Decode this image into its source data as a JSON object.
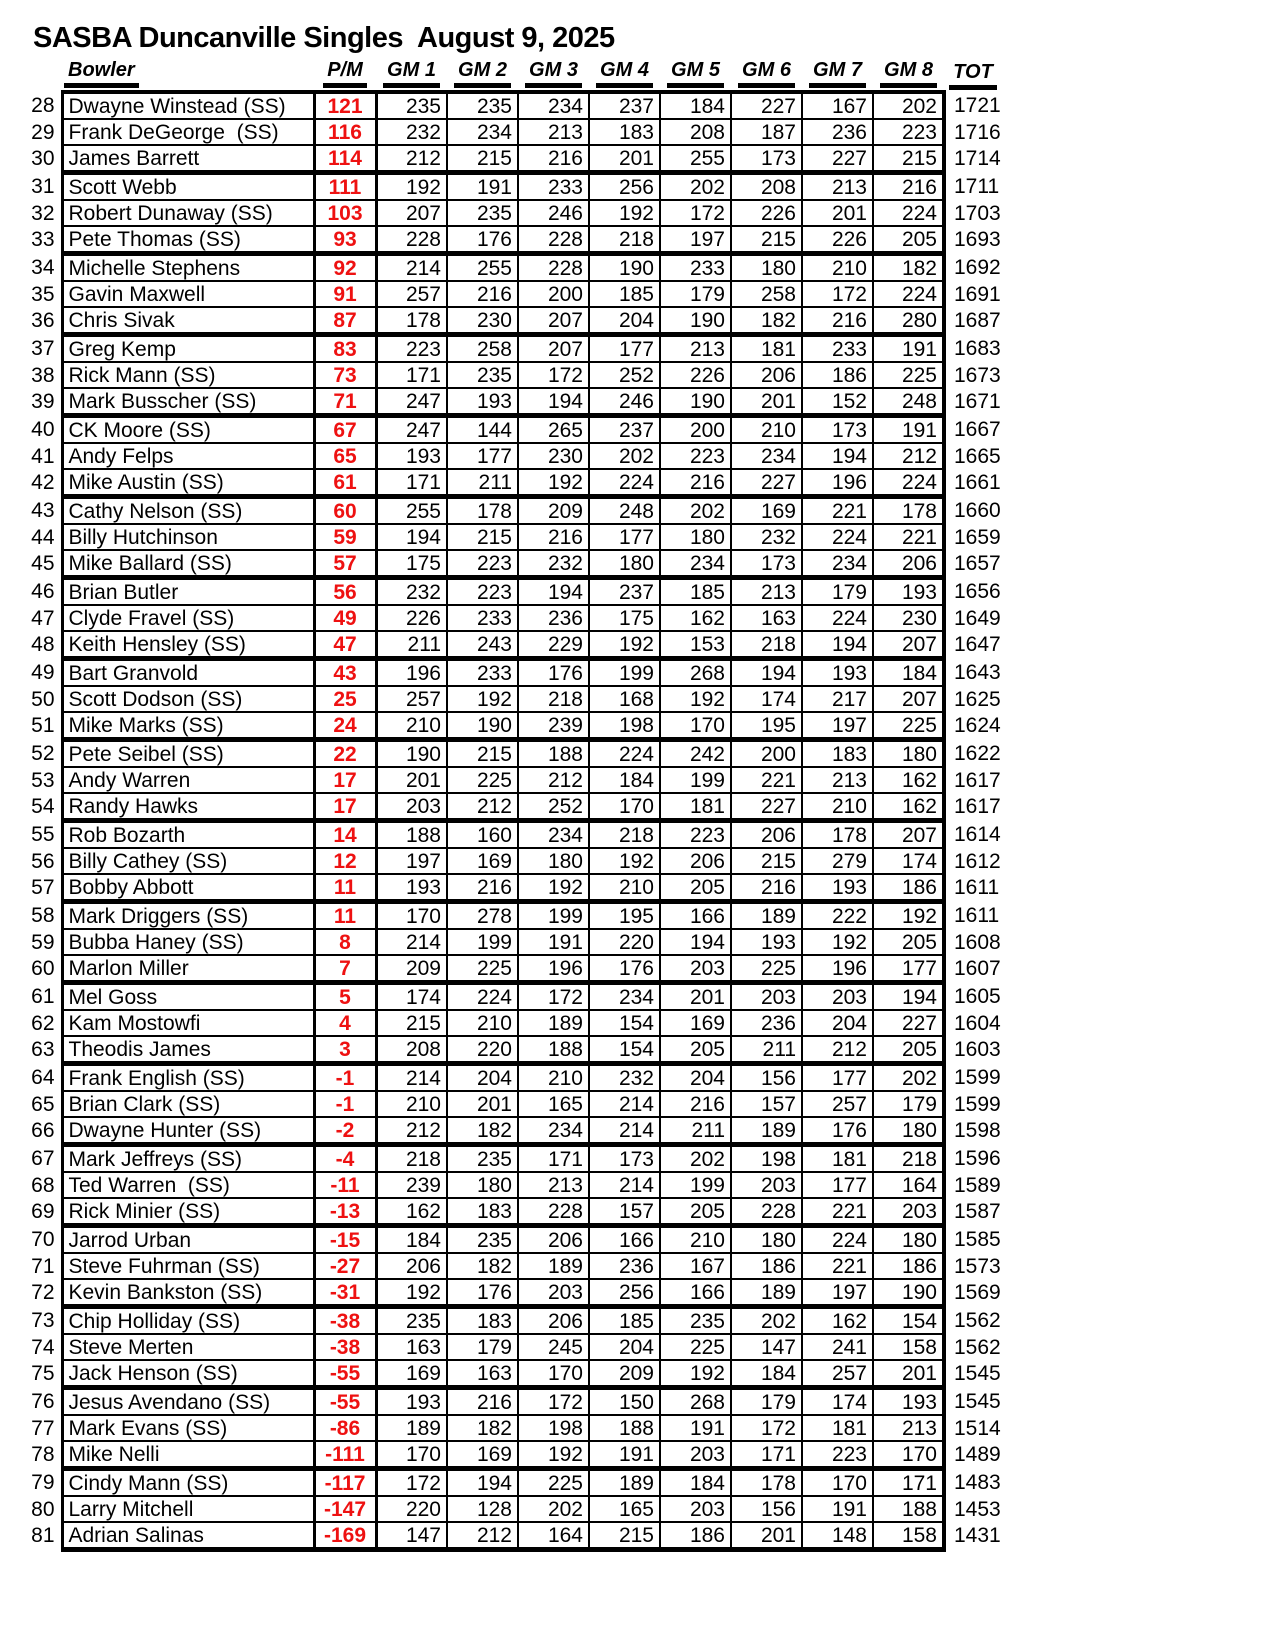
{
  "title": "SASBA Duncanville Singles  August 9, 2025",
  "colors": {
    "plus_minus": "#EE1111"
  },
  "columns": {
    "bowler": "Bowler",
    "pm": "P/M",
    "games": [
      "GM 1",
      "GM 2",
      "GM 3",
      "GM 4",
      "GM 5",
      "GM 6",
      "GM 7",
      "GM 8"
    ],
    "tot": "TOT"
  },
  "rows": [
    {
      "rank": 28,
      "name": "Dwayne Winstead (SS)",
      "pm": "121",
      "games": [
        235,
        235,
        234,
        237,
        184,
        227,
        167,
        202
      ],
      "tot": 1721
    },
    {
      "rank": 29,
      "name": "Frank DeGeorge  (SS)",
      "pm": "116",
      "games": [
        232,
        234,
        213,
        183,
        208,
        187,
        236,
        223
      ],
      "tot": 1716
    },
    {
      "rank": 30,
      "name": "James Barrett",
      "pm": "114",
      "games": [
        212,
        215,
        216,
        201,
        255,
        173,
        227,
        215
      ],
      "tot": 1714
    },
    {
      "rank": 31,
      "name": "Scott Webb",
      "pm": "111",
      "games": [
        192,
        191,
        233,
        256,
        202,
        208,
        213,
        216
      ],
      "tot": 1711
    },
    {
      "rank": 32,
      "name": "Robert Dunaway (SS)",
      "pm": "103",
      "games": [
        207,
        235,
        246,
        192,
        172,
        226,
        201,
        224
      ],
      "tot": 1703
    },
    {
      "rank": 33,
      "name": "Pete Thomas (SS)",
      "pm": "93",
      "games": [
        228,
        176,
        228,
        218,
        197,
        215,
        226,
        205
      ],
      "tot": 1693
    },
    {
      "rank": 34,
      "name": "Michelle Stephens",
      "pm": "92",
      "games": [
        214,
        255,
        228,
        190,
        233,
        180,
        210,
        182
      ],
      "tot": 1692
    },
    {
      "rank": 35,
      "name": "Gavin Maxwell",
      "pm": "91",
      "games": [
        257,
        216,
        200,
        185,
        179,
        258,
        172,
        224
      ],
      "tot": 1691
    },
    {
      "rank": 36,
      "name": "Chris Sivak",
      "pm": "87",
      "games": [
        178,
        230,
        207,
        204,
        190,
        182,
        216,
        280
      ],
      "tot": 1687
    },
    {
      "rank": 37,
      "name": "Greg Kemp",
      "pm": "83",
      "games": [
        223,
        258,
        207,
        177,
        213,
        181,
        233,
        191
      ],
      "tot": 1683
    },
    {
      "rank": 38,
      "name": "Rick Mann (SS)",
      "pm": "73",
      "games": [
        171,
        235,
        172,
        252,
        226,
        206,
        186,
        225
      ],
      "tot": 1673
    },
    {
      "rank": 39,
      "name": "Mark Busscher (SS)",
      "pm": "71",
      "games": [
        247,
        193,
        194,
        246,
        190,
        201,
        152,
        248
      ],
      "tot": 1671
    },
    {
      "rank": 40,
      "name": "CK Moore (SS)",
      "pm": "67",
      "games": [
        247,
        144,
        265,
        237,
        200,
        210,
        173,
        191
      ],
      "tot": 1667
    },
    {
      "rank": 41,
      "name": "Andy Felps",
      "pm": "65",
      "games": [
        193,
        177,
        230,
        202,
        223,
        234,
        194,
        212
      ],
      "tot": 1665
    },
    {
      "rank": 42,
      "name": "Mike Austin (SS)",
      "pm": "61",
      "games": [
        171,
        211,
        192,
        224,
        216,
        227,
        196,
        224
      ],
      "tot": 1661
    },
    {
      "rank": 43,
      "name": "Cathy Nelson (SS)",
      "pm": "60",
      "games": [
        255,
        178,
        209,
        248,
        202,
        169,
        221,
        178
      ],
      "tot": 1660
    },
    {
      "rank": 44,
      "name": "Billy Hutchinson",
      "pm": "59",
      "games": [
        194,
        215,
        216,
        177,
        180,
        232,
        224,
        221
      ],
      "tot": 1659
    },
    {
      "rank": 45,
      "name": "Mike Ballard (SS)",
      "pm": "57",
      "games": [
        175,
        223,
        232,
        180,
        234,
        173,
        234,
        206
      ],
      "tot": 1657
    },
    {
      "rank": 46,
      "name": "Brian Butler",
      "pm": "56",
      "games": [
        232,
        223,
        194,
        237,
        185,
        213,
        179,
        193
      ],
      "tot": 1656
    },
    {
      "rank": 47,
      "name": "Clyde Fravel (SS)",
      "pm": "49",
      "games": [
        226,
        233,
        236,
        175,
        162,
        163,
        224,
        230
      ],
      "tot": 1649
    },
    {
      "rank": 48,
      "name": "Keith Hensley (SS)",
      "pm": "47",
      "games": [
        211,
        243,
        229,
        192,
        153,
        218,
        194,
        207
      ],
      "tot": 1647
    },
    {
      "rank": 49,
      "name": "Bart Granvold",
      "pm": "43",
      "games": [
        196,
        233,
        176,
        199,
        268,
        194,
        193,
        184
      ],
      "tot": 1643
    },
    {
      "rank": 50,
      "name": "Scott Dodson (SS)",
      "pm": "25",
      "games": [
        257,
        192,
        218,
        168,
        192,
        174,
        217,
        207
      ],
      "tot": 1625
    },
    {
      "rank": 51,
      "name": "Mike Marks (SS)",
      "pm": "24",
      "games": [
        210,
        190,
        239,
        198,
        170,
        195,
        197,
        225
      ],
      "tot": 1624
    },
    {
      "rank": 52,
      "name": "Pete Seibel (SS)",
      "pm": "22",
      "games": [
        190,
        215,
        188,
        224,
        242,
        200,
        183,
        180
      ],
      "tot": 1622
    },
    {
      "rank": 53,
      "name": "Andy Warren",
      "pm": "17",
      "games": [
        201,
        225,
        212,
        184,
        199,
        221,
        213,
        162
      ],
      "tot": 1617
    },
    {
      "rank": 54,
      "name": "Randy Hawks",
      "pm": "17",
      "games": [
        203,
        212,
        252,
        170,
        181,
        227,
        210,
        162
      ],
      "tot": 1617
    },
    {
      "rank": 55,
      "name": "Rob Bozarth",
      "pm": "14",
      "games": [
        188,
        160,
        234,
        218,
        223,
        206,
        178,
        207
      ],
      "tot": 1614
    },
    {
      "rank": 56,
      "name": "Billy Cathey (SS)",
      "pm": "12",
      "games": [
        197,
        169,
        180,
        192,
        206,
        215,
        279,
        174
      ],
      "tot": 1612
    },
    {
      "rank": 57,
      "name": "Bobby Abbott",
      "pm": "11",
      "games": [
        193,
        216,
        192,
        210,
        205,
        216,
        193,
        186
      ],
      "tot": 1611
    },
    {
      "rank": 58,
      "name": "Mark Driggers (SS)",
      "pm": "11",
      "games": [
        170,
        278,
        199,
        195,
        166,
        189,
        222,
        192
      ],
      "tot": 1611
    },
    {
      "rank": 59,
      "name": "Bubba Haney (SS)",
      "pm": "8",
      "games": [
        214,
        199,
        191,
        220,
        194,
        193,
        192,
        205
      ],
      "tot": 1608
    },
    {
      "rank": 60,
      "name": "Marlon Miller",
      "pm": "7",
      "games": [
        209,
        225,
        196,
        176,
        203,
        225,
        196,
        177
      ],
      "tot": 1607
    },
    {
      "rank": 61,
      "name": "Mel Goss",
      "pm": "5",
      "games": [
        174,
        224,
        172,
        234,
        201,
        203,
        203,
        194
      ],
      "tot": 1605
    },
    {
      "rank": 62,
      "name": "Kam Mostowfi",
      "pm": "4",
      "games": [
        215,
        210,
        189,
        154,
        169,
        236,
        204,
        227
      ],
      "tot": 1604
    },
    {
      "rank": 63,
      "name": "Theodis James",
      "pm": "3",
      "games": [
        208,
        220,
        188,
        154,
        205,
        211,
        212,
        205
      ],
      "tot": 1603
    },
    {
      "rank": 64,
      "name": "Frank English (SS)",
      "pm": "-1",
      "games": [
        214,
        204,
        210,
        232,
        204,
        156,
        177,
        202
      ],
      "tot": 1599
    },
    {
      "rank": 65,
      "name": "Brian Clark (SS)",
      "pm": "-1",
      "games": [
        210,
        201,
        165,
        214,
        216,
        157,
        257,
        179
      ],
      "tot": 1599
    },
    {
      "rank": 66,
      "name": "Dwayne Hunter (SS)",
      "pm": "-2",
      "games": [
        212,
        182,
        234,
        214,
        211,
        189,
        176,
        180
      ],
      "tot": 1598
    },
    {
      "rank": 67,
      "name": "Mark Jeffreys (SS)",
      "pm": "-4",
      "games": [
        218,
        235,
        171,
        173,
        202,
        198,
        181,
        218
      ],
      "tot": 1596
    },
    {
      "rank": 68,
      "name": "Ted Warren  (SS)",
      "pm": "-11",
      "games": [
        239,
        180,
        213,
        214,
        199,
        203,
        177,
        164
      ],
      "tot": 1589
    },
    {
      "rank": 69,
      "name": "Rick Minier (SS)",
      "pm": "-13",
      "games": [
        162,
        183,
        228,
        157,
        205,
        228,
        221,
        203
      ],
      "tot": 1587
    },
    {
      "rank": 70,
      "name": "Jarrod Urban",
      "pm": "-15",
      "games": [
        184,
        235,
        206,
        166,
        210,
        180,
        224,
        180
      ],
      "tot": 1585
    },
    {
      "rank": 71,
      "name": "Steve Fuhrman (SS)",
      "pm": "-27",
      "games": [
        206,
        182,
        189,
        236,
        167,
        186,
        221,
        186
      ],
      "tot": 1573
    },
    {
      "rank": 72,
      "name": "Kevin Bankston (SS)",
      "pm": "-31",
      "games": [
        192,
        176,
        203,
        256,
        166,
        189,
        197,
        190
      ],
      "tot": 1569
    },
    {
      "rank": 73,
      "name": "Chip Holliday (SS)",
      "pm": "-38",
      "games": [
        235,
        183,
        206,
        185,
        235,
        202,
        162,
        154
      ],
      "tot": 1562
    },
    {
      "rank": 74,
      "name": "Steve Merten",
      "pm": "-38",
      "games": [
        163,
        179,
        245,
        204,
        225,
        147,
        241,
        158
      ],
      "tot": 1562
    },
    {
      "rank": 75,
      "name": "Jack Henson (SS)",
      "pm": "-55",
      "games": [
        169,
        163,
        170,
        209,
        192,
        184,
        257,
        201
      ],
      "tot": 1545
    },
    {
      "rank": 76,
      "name": "Jesus Avendano (SS)",
      "pm": "-55",
      "games": [
        193,
        216,
        172,
        150,
        268,
        179,
        174,
        193
      ],
      "tot": 1545
    },
    {
      "rank": 77,
      "name": "Mark Evans (SS)",
      "pm": "-86",
      "games": [
        189,
        182,
        198,
        188,
        191,
        172,
        181,
        213
      ],
      "tot": 1514
    },
    {
      "rank": 78,
      "name": "Mike Nelli",
      "pm": "-111",
      "games": [
        170,
        169,
        192,
        191,
        203,
        171,
        223,
        170
      ],
      "tot": 1489
    },
    {
      "rank": 79,
      "name": "Cindy Mann (SS)",
      "pm": "-117",
      "games": [
        172,
        194,
        225,
        189,
        184,
        178,
        170,
        171
      ],
      "tot": 1483
    },
    {
      "rank": 80,
      "name": "Larry Mitchell",
      "pm": "-147",
      "games": [
        220,
        128,
        202,
        165,
        203,
        156,
        191,
        188
      ],
      "tot": 1453
    },
    {
      "rank": 81,
      "name": "Adrian Salinas",
      "pm": "-169",
      "games": [
        147,
        212,
        164,
        215,
        186,
        201,
        148,
        158
      ],
      "tot": 1431
    }
  ]
}
